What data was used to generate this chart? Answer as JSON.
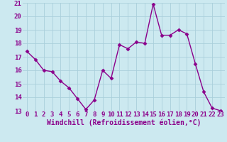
{
  "x": [
    0,
    1,
    2,
    3,
    4,
    5,
    6,
    7,
    8,
    9,
    10,
    11,
    12,
    13,
    14,
    15,
    16,
    17,
    18,
    19,
    20,
    21,
    22,
    23
  ],
  "y": [
    17.4,
    16.8,
    16.0,
    15.9,
    15.2,
    14.7,
    13.9,
    13.1,
    13.8,
    16.0,
    15.4,
    17.9,
    17.6,
    18.1,
    18.0,
    20.9,
    18.6,
    18.6,
    19.0,
    18.7,
    16.5,
    14.4,
    13.2,
    13.0
  ],
  "line_color": "#8B008B",
  "marker": "D",
  "marker_size": 2.5,
  "background_color": "#cce9f0",
  "grid_color": "#aacfdb",
  "xlabel": "Windchill (Refroidissement éolien,°C)",
  "xlabel_fontsize": 7,
  "ylim": [
    13,
    21
  ],
  "xlim": [
    -0.5,
    23.5
  ],
  "yticks": [
    13,
    14,
    15,
    16,
    17,
    18,
    19,
    20,
    21
  ],
  "xticks": [
    0,
    1,
    2,
    3,
    4,
    5,
    6,
    7,
    8,
    9,
    10,
    11,
    12,
    13,
    14,
    15,
    16,
    17,
    18,
    19,
    20,
    21,
    22,
    23
  ],
  "tick_fontsize": 6.5,
  "line_width": 1.0,
  "tick_color": "#8B008B",
  "label_color": "#8B008B"
}
